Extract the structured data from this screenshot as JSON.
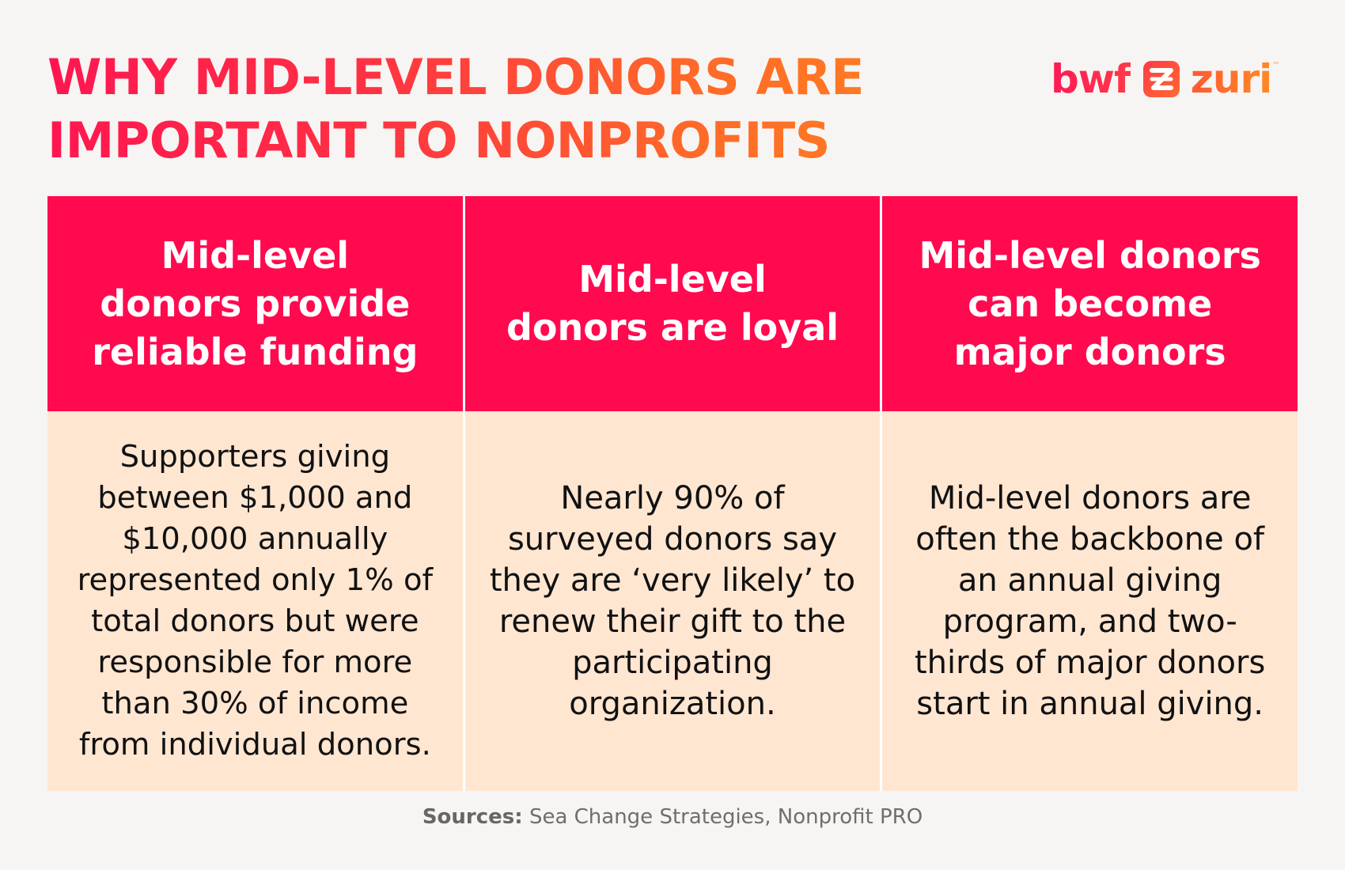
{
  "title": {
    "line1": "WHY MID-LEVEL DONORS ARE",
    "line2": "IMPORTANT TO NONPROFITS"
  },
  "logo": {
    "brand1": "bwf",
    "brand2": "zuri",
    "trademark": "™",
    "mark_icon": "zuri-z-mark-icon"
  },
  "columns": [
    {
      "heading": "Mid-level donors provide reliable funding",
      "body": "Supporters giving between $1,000 and $10,000 annually represented only 1% of total donors but were responsible for more than 30% of income from individual donors."
    },
    {
      "heading": "Mid-level donors are loyal",
      "body": "Nearly 90% of surveyed donors say they are ‘very likely’ to renew their gift to the participating organization."
    },
    {
      "heading": "Mid-level donors can become major donors",
      "body": "Mid-level donors are often the backbone of an annual giving program, and two-thirds of major donors start in annual giving."
    }
  ],
  "sources": {
    "label": "Sources:",
    "text": "Sea Change Strategies, Nonprofit PRO"
  },
  "colors": {
    "background": "#f7f5f3",
    "header_fill": "#ff0a4f",
    "body_fill": "#ffe6d1",
    "title_gradient_start": "#ff1651",
    "title_gradient_end": "#ff7e22"
  }
}
